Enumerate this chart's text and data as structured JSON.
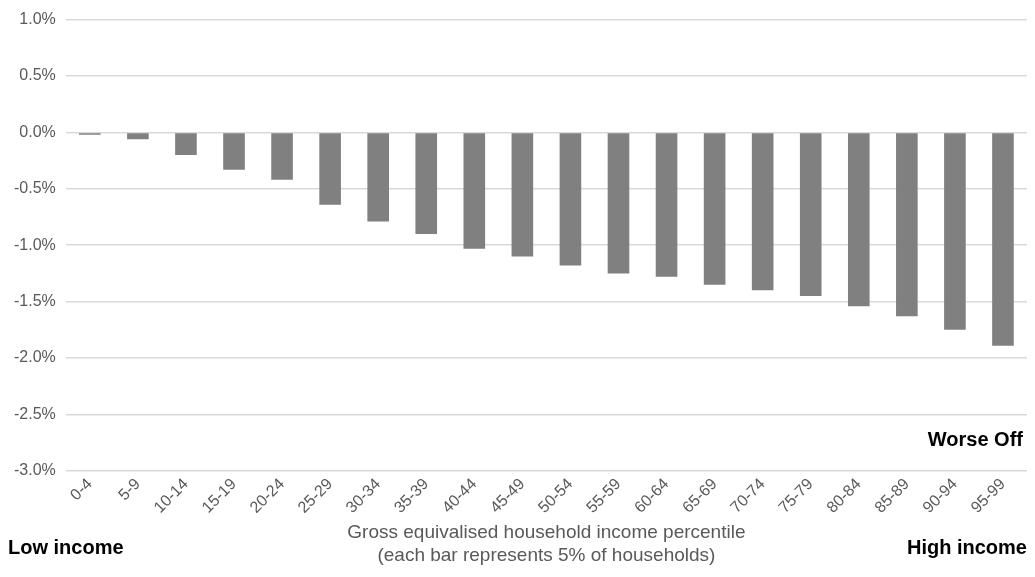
{
  "chart_data": {
    "type": "bar",
    "categories": [
      "0-4",
      "5-9",
      "10-14",
      "15-19",
      "20-24",
      "25-29",
      "30-34",
      "35-39",
      "40-44",
      "45-49",
      "50-54",
      "55-59",
      "60-64",
      "65-69",
      "70-74",
      "75-79",
      "80-84",
      "85-89",
      "90-94",
      "95-99"
    ],
    "values": [
      -0.02,
      -0.06,
      -0.2,
      -0.33,
      -0.42,
      -0.64,
      -0.79,
      -0.9,
      -1.03,
      -1.1,
      -1.18,
      -1.25,
      -1.28,
      -1.35,
      -1.4,
      -1.45,
      -1.54,
      -1.63,
      -1.75,
      -1.89
    ],
    "color": "#808080",
    "ylim": [
      -3,
      1
    ],
    "yticks": [
      {
        "value": -3,
        "label": "-3.0%"
      },
      {
        "value": -2.5,
        "label": "-2.5%"
      },
      {
        "value": -2,
        "label": "-2.0%"
      },
      {
        "value": -1.5,
        "label": "-1.5%"
      },
      {
        "value": -1,
        "label": "-1.0%"
      },
      {
        "value": -0.5,
        "label": "-0.5%"
      },
      {
        "value": 0,
        "label": "0.0%"
      },
      {
        "value": 0.5,
        "label": "0.5%"
      },
      {
        "value": 1,
        "label": "1.0%"
      }
    ],
    "xlabel": "Gross equivalised household income percentile\n(each bar represents 5% of households)",
    "annotations": [
      "Low income",
      "High income",
      "Worse Off"
    ],
    "grid": "y",
    "legend": false
  }
}
